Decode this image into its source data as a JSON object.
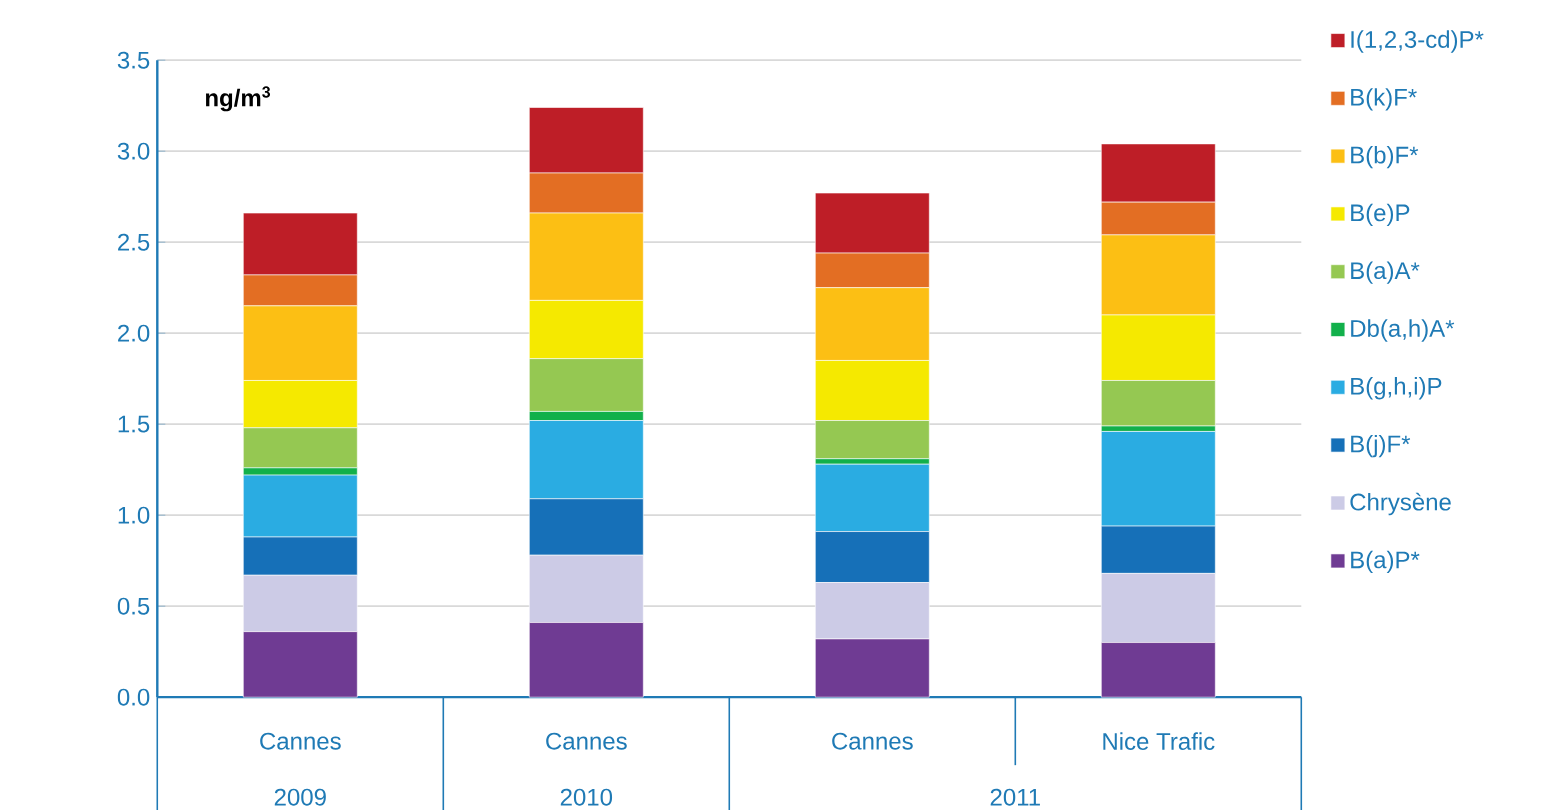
{
  "chart_data": {
    "type": "bar",
    "stacked": true,
    "ylabel": "ng/m$^{3}$",
    "categories": [
      "Cannes",
      "Cannes",
      "Cannes",
      "Nice Trafic"
    ],
    "annotations": [
      "2009",
      "2010",
      "2011"
    ],
    "ylim": [
      0,
      3.5
    ],
    "yticks": [
      {
        "value": 0,
        "label": "0.0"
      },
      {
        "value": 0.5,
        "label": "0.5"
      },
      {
        "value": 1,
        "label": "1.0"
      },
      {
        "value": 1.5,
        "label": "1.5"
      },
      {
        "value": 2,
        "label": "2.0"
      },
      {
        "value": 2.5,
        "label": "2.5"
      },
      {
        "value": 3,
        "label": "3.0"
      },
      {
        "value": 3.5,
        "label": "3.5"
      }
    ],
    "grid": "y",
    "legend": "right",
    "series": [
      {
        "name": "B(a)P*",
        "color": "#6f3b93",
        "values": [
          0.36,
          0.41,
          0.32,
          0.3
        ]
      },
      {
        "name": "Chrysène",
        "color": "#cccbe6",
        "values": [
          0.31,
          0.37,
          0.31,
          0.38
        ]
      },
      {
        "name": "B(j)F*",
        "color": "#1670b8",
        "values": [
          0.21,
          0.31,
          0.28,
          0.26
        ]
      },
      {
        "name": "B(g,h,i)P",
        "color": "#2aace2",
        "values": [
          0.34,
          0.43,
          0.37,
          0.52
        ]
      },
      {
        "name": "Db(a,h)A*",
        "color": "#12b04b",
        "values": [
          0.04,
          0.05,
          0.03,
          0.03
        ]
      },
      {
        "name": "B(a)A*",
        "color": "#95c852",
        "values": [
          0.22,
          0.29,
          0.21,
          0.25
        ]
      },
      {
        "name": "B(e)P",
        "color": "#f5e900",
        "values": [
          0.26,
          0.32,
          0.33,
          0.36
        ]
      },
      {
        "name": "B(b)F*",
        "color": "#fcbf14",
        "values": [
          0.41,
          0.48,
          0.4,
          0.44
        ]
      },
      {
        "name": "B(k)F*",
        "color": "#e36e23",
        "values": [
          0.17,
          0.22,
          0.19,
          0.18
        ]
      },
      {
        "name": "I(1,2,3-cd)P*",
        "color": "#be1e27",
        "values": [
          0.34,
          0.36,
          0.33,
          0.32
        ]
      }
    ]
  }
}
